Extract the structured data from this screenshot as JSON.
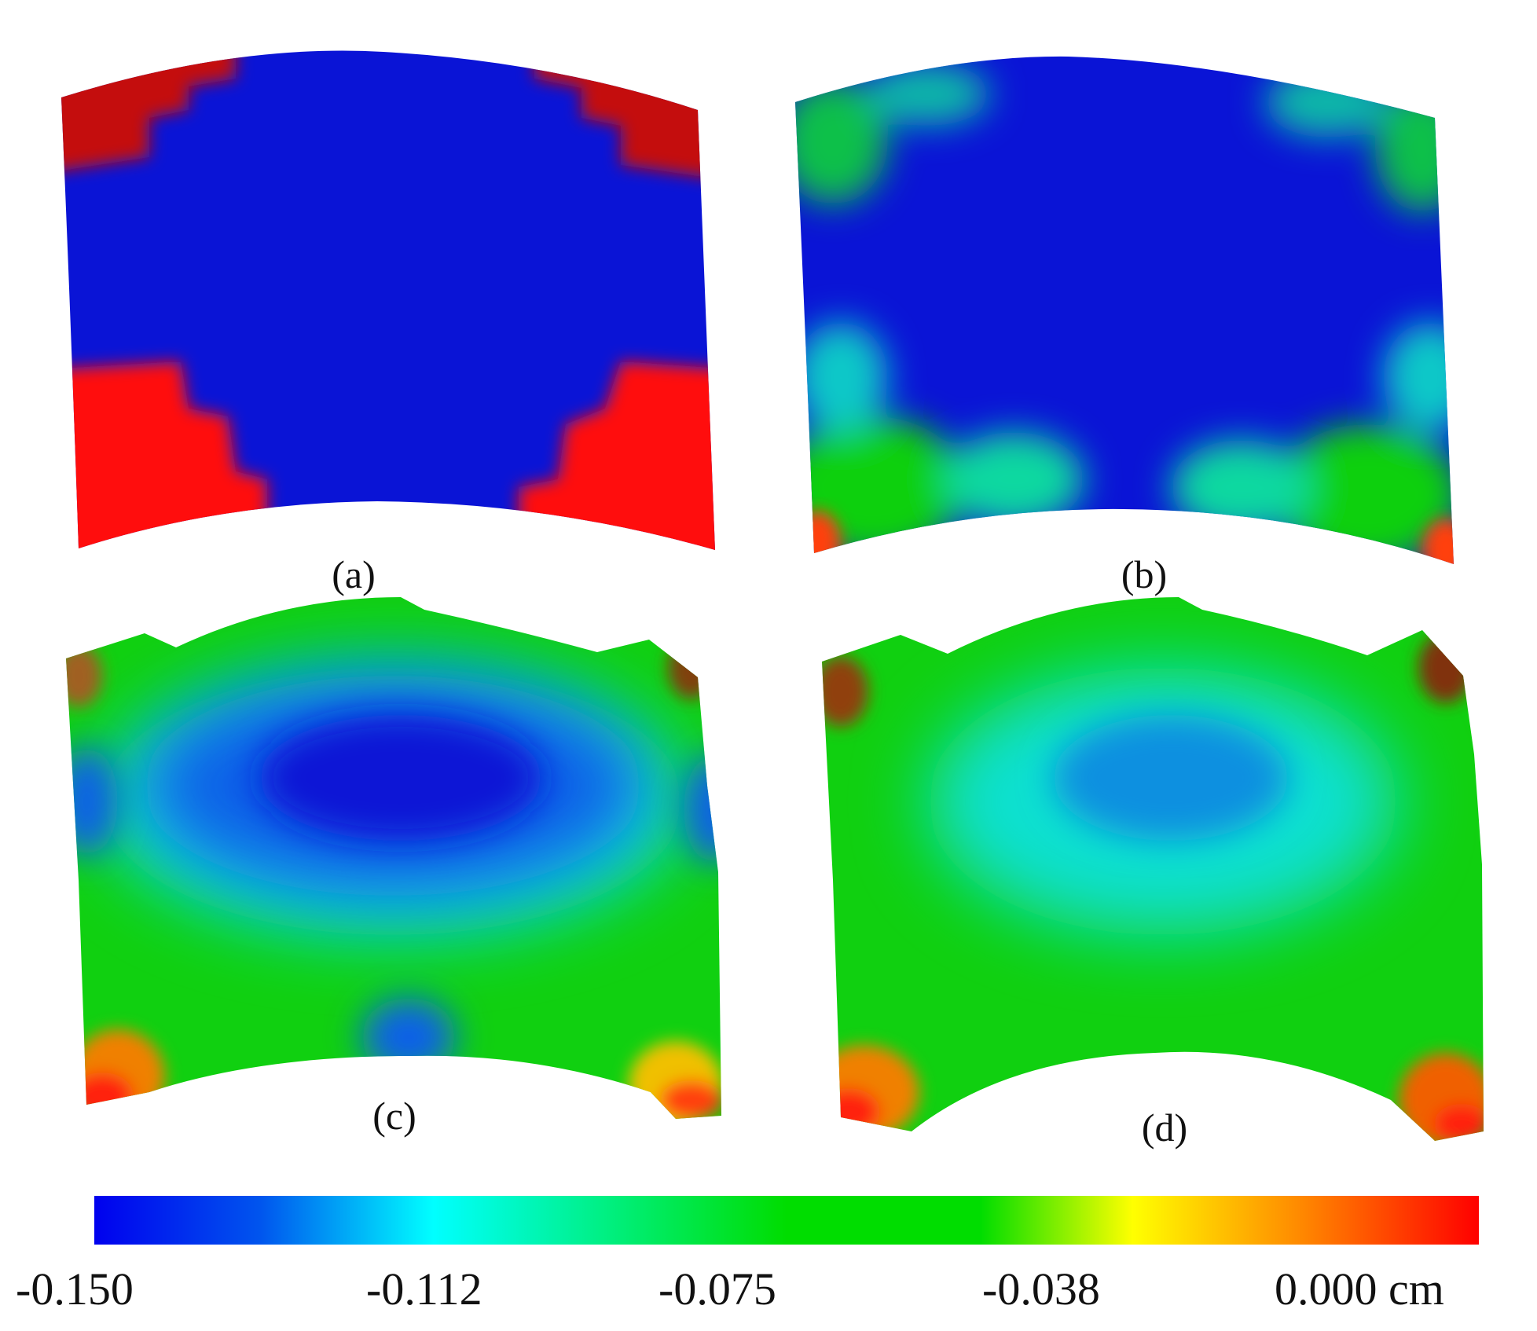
{
  "figure": {
    "panels": [
      {
        "id": "a",
        "label": "(a)"
      },
      {
        "id": "b",
        "label": "(b)"
      },
      {
        "id": "c",
        "label": "(c)"
      },
      {
        "id": "d",
        "label": "(d)"
      }
    ],
    "colorbar": {
      "tick_labels": [
        "-0.150",
        "-0.112",
        "-0.075",
        "-0.038",
        "0.000 cm"
      ],
      "min": -0.15,
      "max": 0.0,
      "unit": "cm",
      "colors": [
        "#0000ee",
        "#0066ee",
        "#00ffff",
        "#00ee66",
        "#00dd00",
        "#00dd00",
        "#ffff00",
        "#ff8800",
        "#ff0000"
      ]
    },
    "colors": {
      "blue": "#0a14d6",
      "red": "#ff1010",
      "dark_red": "#c40a0a",
      "green": "#10d010",
      "cyan": "#10e0e0",
      "yellow": "#f0f000",
      "orange": "#ff7a00"
    }
  }
}
